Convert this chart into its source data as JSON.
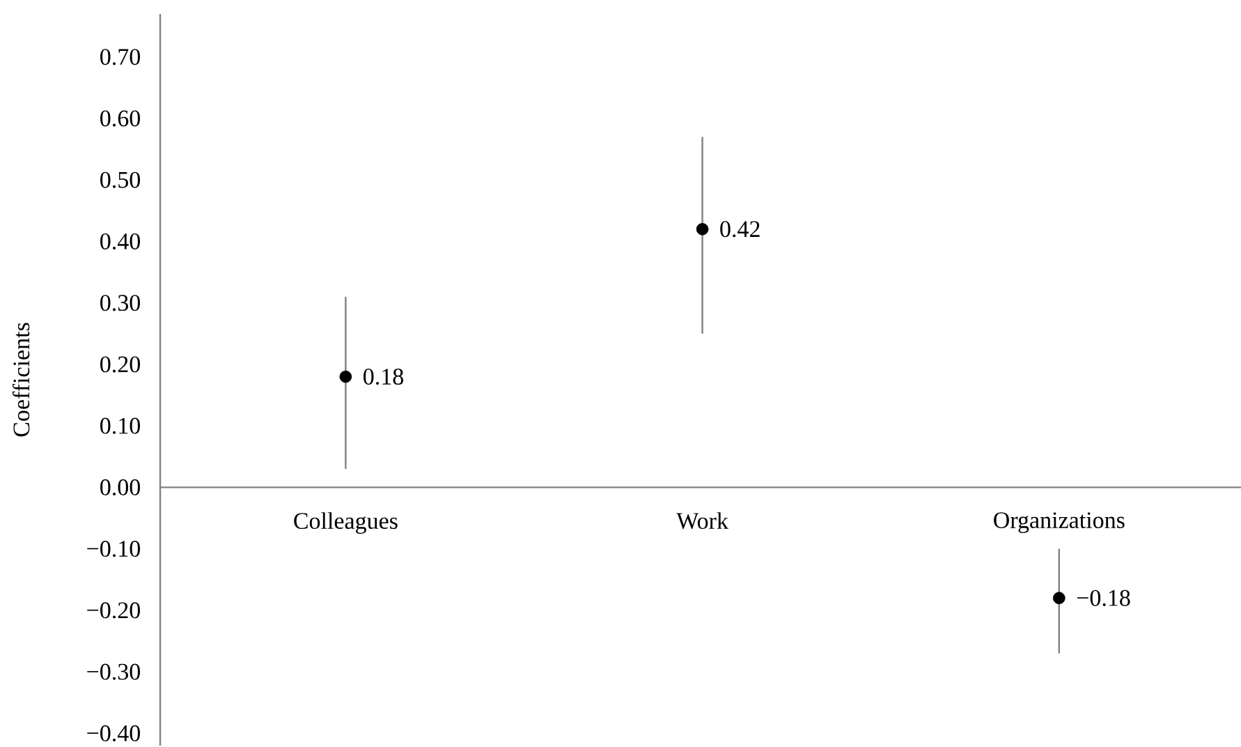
{
  "chart_data": {
    "type": "scatter",
    "ylabel": "Coefficients",
    "categories": [
      "Colleagues",
      "Work",
      "Organizations"
    ],
    "values": [
      0.18,
      0.42,
      -0.18
    ],
    "value_labels": [
      "0.18",
      "0.42",
      "−0.18"
    ],
    "errors": [
      [
        0.03,
        0.31
      ],
      [
        0.25,
        0.57
      ],
      [
        -0.27,
        -0.1
      ]
    ],
    "color": "#000000",
    "marker": "circle",
    "ylim": [
      -0.42,
      0.77
    ],
    "yticks": [
      {
        "value": -0.4,
        "label": "−0.40"
      },
      {
        "value": -0.3,
        "label": "−0.30"
      },
      {
        "value": -0.2,
        "label": "−0.20"
      },
      {
        "value": -0.1,
        "label": "−0.10"
      },
      {
        "value": 0,
        "label": "0.00"
      },
      {
        "value": 0.1,
        "label": "0.10"
      },
      {
        "value": 0.2,
        "label": "0.20"
      },
      {
        "value": 0.3,
        "label": "0.30"
      },
      {
        "value": 0.4,
        "label": "0.40"
      },
      {
        "value": 0.5,
        "label": "0.50"
      },
      {
        "value": 0.6,
        "label": "0.60"
      },
      {
        "value": 0.7,
        "label": "0.70"
      }
    ],
    "grid": false
  }
}
